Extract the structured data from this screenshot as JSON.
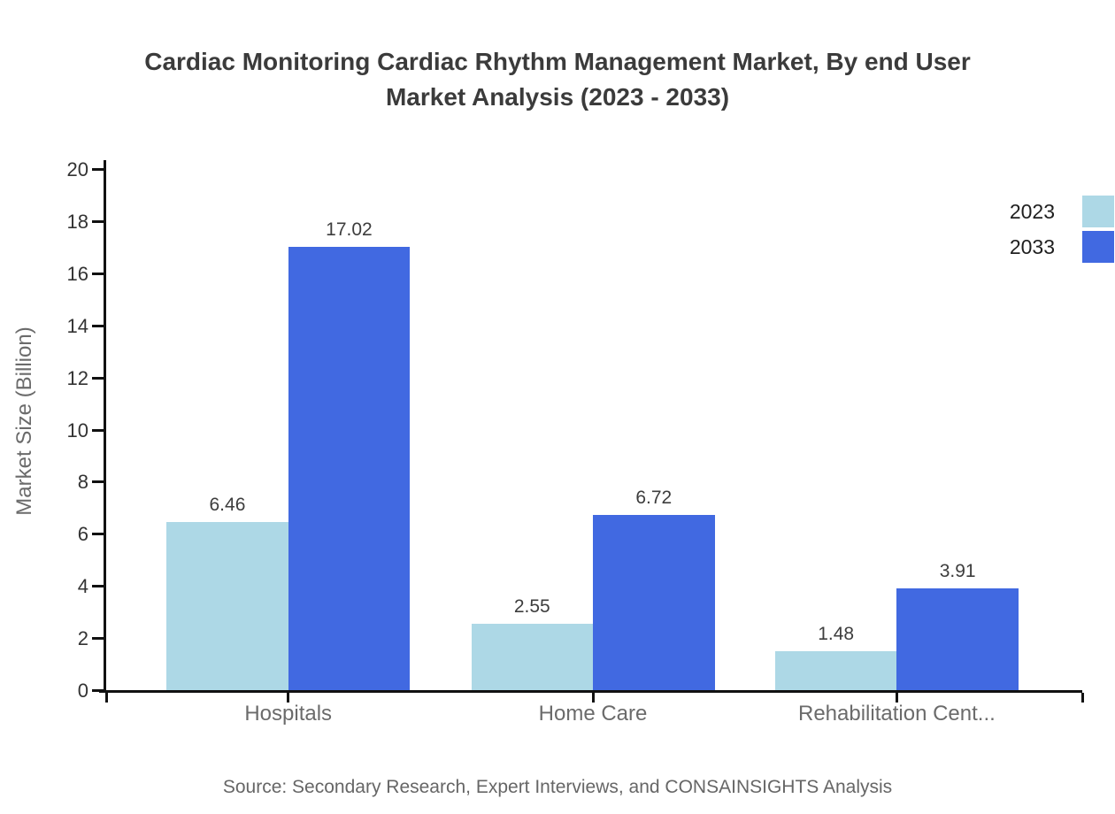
{
  "chart_data": {
    "type": "bar",
    "title": "Cardiac Monitoring Cardiac Rhythm Management Market, By end User Market Analysis (2023 - 2033)",
    "title_lines": [
      "Cardiac Monitoring Cardiac Rhythm Management Market, By end User",
      "Market Analysis (2023 - 2033)"
    ],
    "categories": [
      "Hospitals",
      "Home Care",
      "Rehabilitation Cent..."
    ],
    "series": [
      {
        "name": "2023",
        "color": "#ADD8E6",
        "values": [
          6.46,
          2.55,
          1.48
        ]
      },
      {
        "name": "2033",
        "color": "#4169E1",
        "values": [
          17.02,
          6.72,
          3.91
        ]
      }
    ],
    "xlabel": "",
    "ylabel": "Market Size (Billion)",
    "ylim": [
      0,
      20
    ],
    "ytick_step": 2,
    "grid": false,
    "legend_position": "top-right",
    "value_labels_shown": true,
    "source": "Source: Secondary Research, Expert Interviews, and CONSAINSIGHTS Analysis"
  }
}
